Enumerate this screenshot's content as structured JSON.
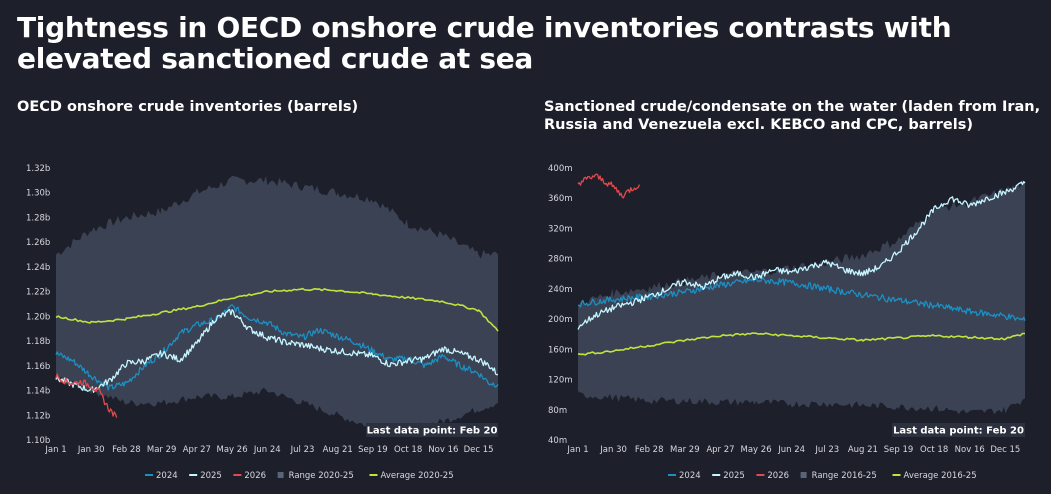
{
  "title": "Tightness in OECD onshore crude inventories contrasts with elevated sanctioned crude at sea",
  "colors": {
    "s2024": "#1d8fc2",
    "s2025": "#c6f5ff",
    "s2026": "#e5484d",
    "range": "#3a4254",
    "average": "#c2e33b",
    "background": "#1d1f2a"
  },
  "chart_data": [
    {
      "type": "line",
      "title": "OECD onshore crude inventories (barrels)",
      "xlabel": "",
      "ylabel": "",
      "x_tick_labels": [
        "Jan 1",
        "Jan 30",
        "Feb 28",
        "Mar 29",
        "Apr 27",
        "May 26",
        "Jun 24",
        "Jul 23",
        "Aug 21",
        "Sep 19",
        "Oct 18",
        "Nov 16",
        "Dec 15"
      ],
      "y_tick_labels": [
        "1.10b",
        "1.12b",
        "1.14b",
        "1.16b",
        "1.18b",
        "1.20b",
        "1.22b",
        "1.24b",
        "1.26b",
        "1.28b",
        "1.30b",
        "1.32b"
      ],
      "ylim": [
        1.1,
        1.32
      ],
      "x_unit": "day of year",
      "note": "Last data point: Feb 20",
      "legend": [
        "2024",
        "2025",
        "2026",
        "Range 2020-25",
        "Average 2020-25"
      ],
      "range": {
        "name": "Range 2020-25",
        "x": [
          1,
          30,
          59,
          88,
          117,
          146,
          175,
          204,
          233,
          262,
          291,
          320,
          349,
          365
        ],
        "upper": [
          1.25,
          1.27,
          1.28,
          1.285,
          1.3,
          1.31,
          1.31,
          1.305,
          1.3,
          1.295,
          1.275,
          1.265,
          1.25,
          1.25
        ],
        "lower": [
          1.15,
          1.14,
          1.13,
          1.13,
          1.135,
          1.135,
          1.14,
          1.13,
          1.12,
          1.11,
          1.11,
          1.115,
          1.125,
          1.13
        ]
      },
      "series": [
        {
          "name": "2024",
          "x": [
            1,
            15,
            30,
            45,
            59,
            74,
            88,
            103,
            117,
            132,
            146,
            160,
            175,
            190,
            204,
            218,
            233,
            248,
            262,
            276,
            291,
            305,
            320,
            334,
            349,
            358,
            365
          ],
          "y": [
            1.17,
            1.164,
            1.152,
            1.142,
            1.146,
            1.16,
            1.17,
            1.186,
            1.193,
            1.197,
            1.208,
            1.199,
            1.195,
            1.186,
            1.183,
            1.189,
            1.184,
            1.179,
            1.172,
            1.165,
            1.166,
            1.16,
            1.168,
            1.16,
            1.154,
            1.146,
            1.145
          ]
        },
        {
          "name": "2025",
          "x": [
            1,
            15,
            30,
            45,
            59,
            74,
            88,
            103,
            117,
            132,
            146,
            160,
            175,
            190,
            204,
            218,
            233,
            248,
            262,
            276,
            291,
            305,
            320,
            334,
            349,
            358,
            365
          ],
          "y": [
            1.15,
            1.145,
            1.14,
            1.148,
            1.162,
            1.164,
            1.17,
            1.165,
            1.178,
            1.198,
            1.204,
            1.19,
            1.183,
            1.179,
            1.177,
            1.174,
            1.172,
            1.17,
            1.168,
            1.161,
            1.164,
            1.166,
            1.174,
            1.17,
            1.165,
            1.16,
            1.153
          ]
        },
        {
          "name": "2026",
          "x": [
            1,
            8,
            15,
            22,
            30,
            37,
            44,
            51
          ],
          "y": [
            1.152,
            1.148,
            1.146,
            1.147,
            1.144,
            1.138,
            1.126,
            1.118
          ]
        },
        {
          "name": "Average 2020-25",
          "x": [
            1,
            30,
            59,
            88,
            117,
            146,
            175,
            204,
            233,
            262,
            291,
            320,
            349,
            365
          ],
          "y": [
            1.2,
            1.195,
            1.198,
            1.203,
            1.208,
            1.215,
            1.22,
            1.222,
            1.221,
            1.218,
            1.215,
            1.212,
            1.205,
            1.188
          ]
        }
      ]
    },
    {
      "type": "line",
      "title": "Sanctioned crude/condensate on the water (laden from Iran, Russia and Venezuela excl. KEBCO and CPC, barrels)",
      "xlabel": "",
      "ylabel": "",
      "x_tick_labels": [
        "Jan 1",
        "Jan 30",
        "Feb 28",
        "Mar 29",
        "Apr 27",
        "May 26",
        "Jun 24",
        "Jul 23",
        "Aug 21",
        "Sep 19",
        "Oct 18",
        "Nov 16",
        "Dec 15"
      ],
      "y_tick_labels": [
        "40m",
        "80m",
        "120m",
        "160m",
        "200m",
        "240m",
        "280m",
        "320m",
        "360m",
        "400m"
      ],
      "ylim": [
        40,
        400
      ],
      "x_unit": "day of year",
      "note": "Last data point: Feb 20",
      "legend": [
        "2024",
        "2025",
        "2026",
        "Range 2016-25",
        "Average 2016-25"
      ],
      "range": {
        "name": "Range 2016-25",
        "x": [
          1,
          30,
          59,
          88,
          117,
          146,
          175,
          204,
          233,
          262,
          291,
          320,
          349,
          365
        ],
        "upper": [
          220,
          235,
          242,
          250,
          258,
          262,
          268,
          275,
          285,
          305,
          345,
          355,
          370,
          380
        ],
        "lower": [
          100,
          96,
          92,
          92,
          90,
          90,
          88,
          88,
          86,
          84,
          82,
          76,
          80,
          95
        ]
      },
      "series": [
        {
          "name": "2024",
          "x": [
            1,
            30,
            59,
            88,
            117,
            146,
            175,
            204,
            233,
            262,
            291,
            320,
            349,
            365
          ],
          "y": [
            220,
            226,
            230,
            236,
            245,
            252,
            248,
            240,
            232,
            225,
            218,
            210,
            204,
            198
          ]
        },
        {
          "name": "2025",
          "x": [
            1,
            15,
            30,
            45,
            59,
            74,
            88,
            103,
            117,
            132,
            146,
            160,
            175,
            190,
            204,
            218,
            233,
            248,
            262,
            276,
            291,
            305,
            320,
            334,
            349,
            358,
            365
          ],
          "y": [
            190,
            205,
            215,
            222,
            230,
            240,
            250,
            242,
            255,
            260,
            255,
            265,
            262,
            270,
            275,
            265,
            260,
            270,
            290,
            315,
            345,
            360,
            350,
            360,
            368,
            375,
            380
          ]
        },
        {
          "name": "2026",
          "x": [
            1,
            8,
            15,
            22,
            30,
            37,
            44,
            51
          ],
          "y": [
            380,
            385,
            390,
            383,
            375,
            363,
            372,
            378
          ]
        },
        {
          "name": "Average 2016-25",
          "x": [
            1,
            30,
            59,
            88,
            117,
            146,
            175,
            204,
            233,
            262,
            291,
            320,
            349,
            365
          ],
          "y": [
            153,
            158,
            165,
            172,
            178,
            181,
            178,
            175,
            172,
            175,
            178,
            176,
            174,
            181
          ]
        }
      ]
    }
  ]
}
